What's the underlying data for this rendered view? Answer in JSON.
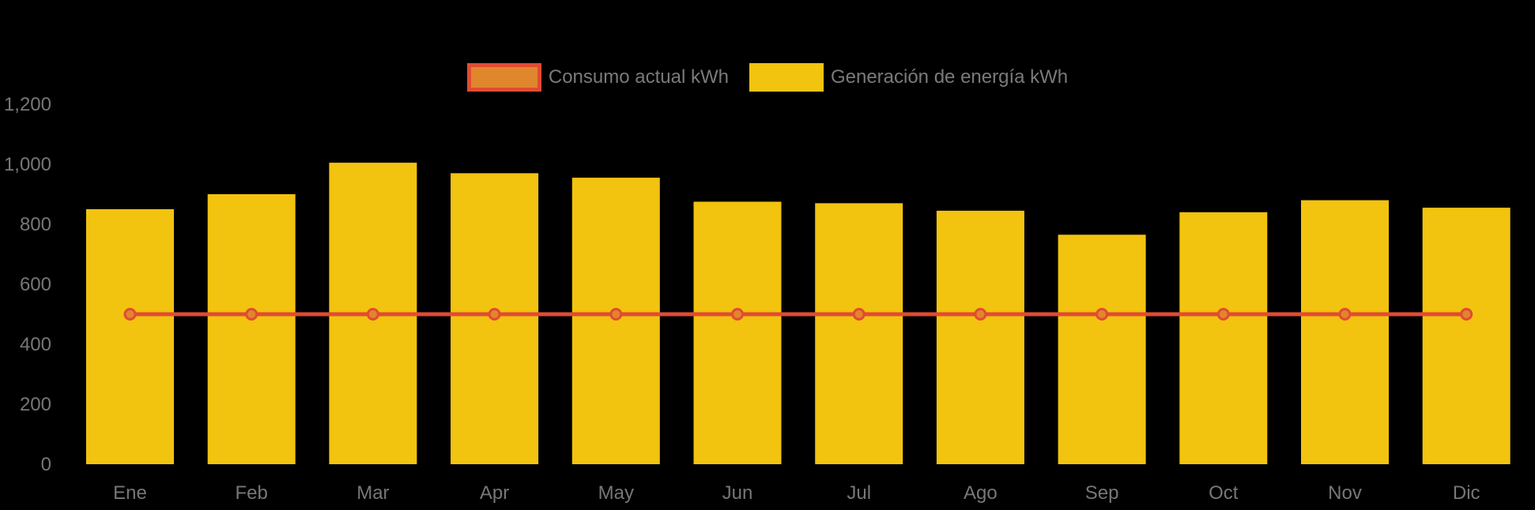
{
  "legend": {
    "items": [
      {
        "label": "Consumo actual kWh",
        "series_type": "line"
      },
      {
        "label": "Generación de energía kWh",
        "series_type": "bar"
      }
    ]
  },
  "colors": {
    "background": "#000000",
    "bar": "#F2C30F",
    "line": "#E14B33",
    "marker_fill": "#E0862D",
    "marker_stroke": "#E14B33",
    "axis_text": "#777777",
    "legend_text": "#7A7A7A"
  },
  "chart_data": {
    "type": "bar",
    "subtype": "bar-line-combo",
    "categories": [
      "Ene",
      "Feb",
      "Mar",
      "Apr",
      "May",
      "Jun",
      "Jul",
      "Ago",
      "Sep",
      "Oct",
      "Nov",
      "Dic"
    ],
    "series": [
      {
        "name": "Consumo actual kWh",
        "type": "line",
        "values": [
          500,
          500,
          500,
          500,
          500,
          500,
          500,
          500,
          500,
          500,
          500,
          500
        ]
      },
      {
        "name": "Generación de energía kWh",
        "type": "bar",
        "values": [
          850,
          900,
          1005,
          970,
          955,
          875,
          870,
          845,
          765,
          840,
          880,
          855
        ]
      }
    ],
    "title": "",
    "xlabel": "",
    "ylabel": "",
    "ylim": [
      0,
      1200
    ],
    "ytick_step": 200,
    "ytick_labels": [
      "0",
      "200",
      "400",
      "600",
      "800",
      "1,000",
      "1,200"
    ],
    "grid": false,
    "legend_position": "top-center"
  }
}
